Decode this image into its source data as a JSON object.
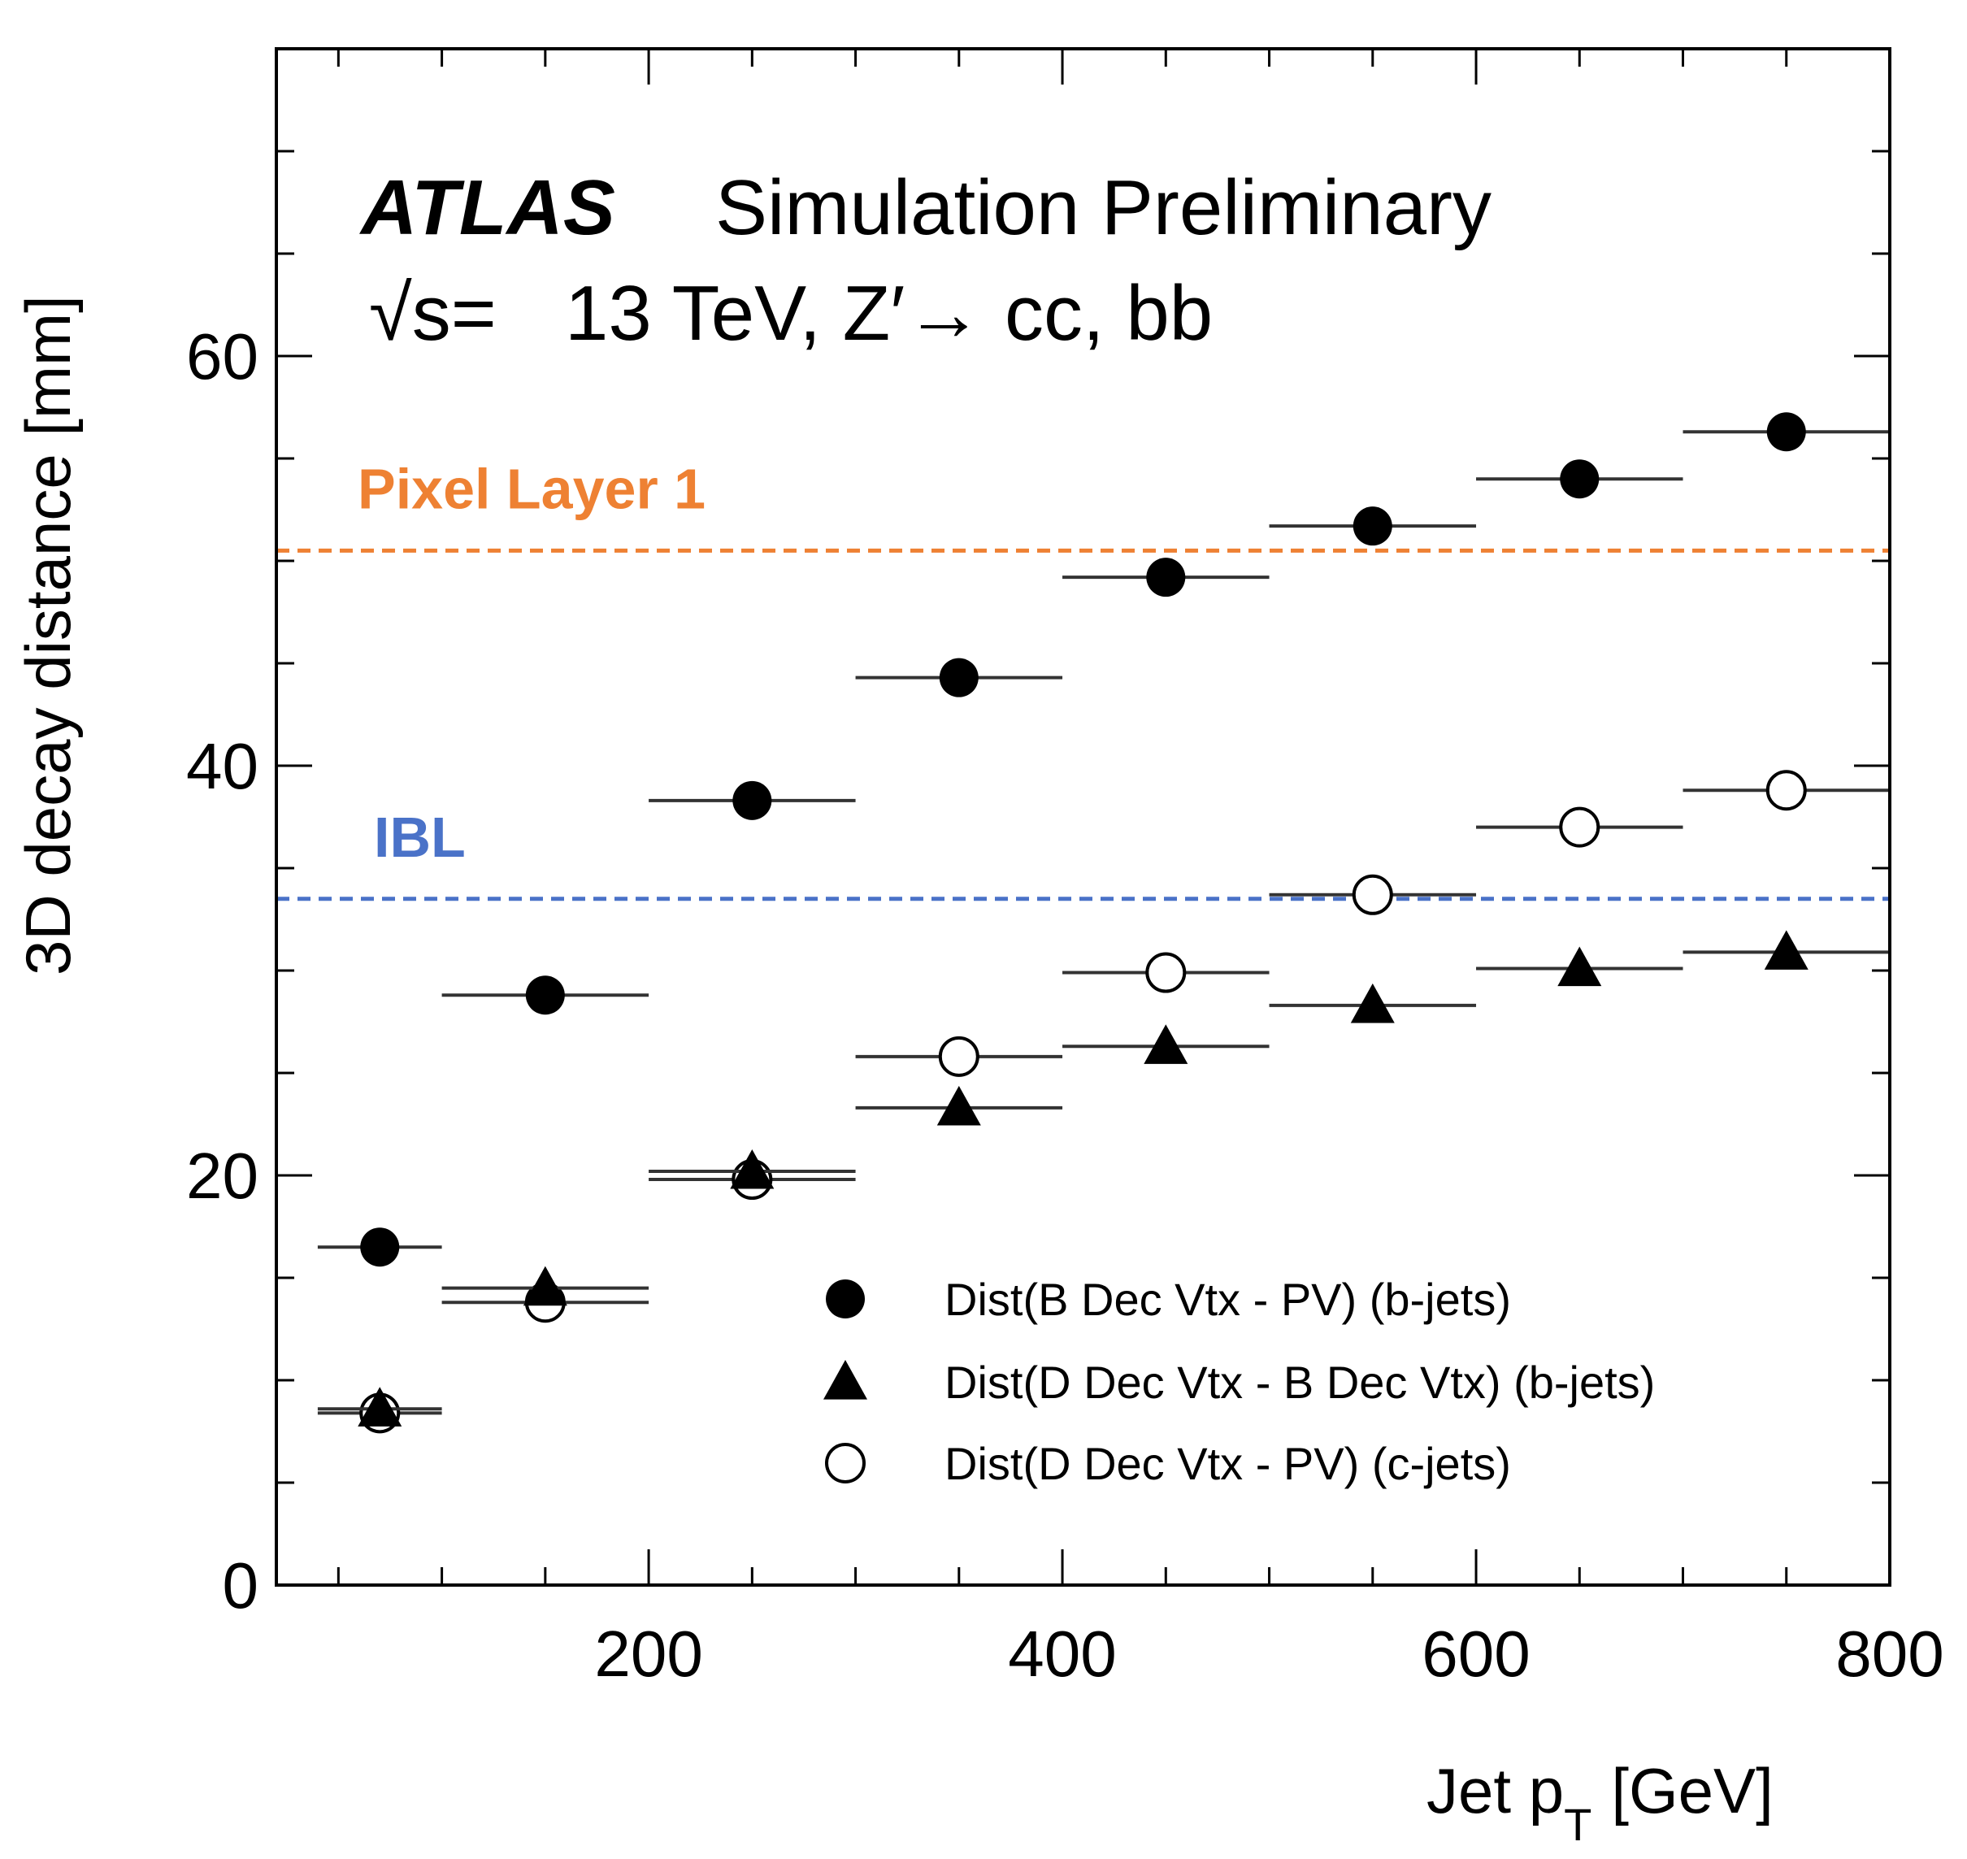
{
  "chart_data": {
    "type": "scatter",
    "experiment": "ATLAS",
    "experiment_suffix": "Simulation  Preliminary",
    "energy_sqrt": "√s=",
    "energy_text": "13 TeV, Z′→ cc, bb",
    "xlabel": "Jet p",
    "xlabel_sub": "T",
    "xlabel_unit": "[GeV]",
    "ylabel": "3D decay distance [mm]",
    "xlim": [
      20,
      800
    ],
    "ylim": [
      0,
      75
    ],
    "x_ticks": [
      200,
      400,
      600,
      800
    ],
    "y_ticks": [
      0,
      20,
      40,
      60
    ],
    "x_minor_step": 50,
    "y_minor_step": 5,
    "hlines": [
      {
        "label": "Pixel Layer 1",
        "y": 50.5,
        "color": "#ee8133"
      },
      {
        "label": "IBL",
        "y": 33.5,
        "color": "#4a72c8"
      }
    ],
    "series": [
      {
        "name": "Dist(B Dec Vtx - PV) (b-jets)",
        "marker": "filled-circle",
        "points": [
          {
            "x": 70,
            "xlo": 40,
            "xhi": 100,
            "y": 16.5
          },
          {
            "x": 150,
            "xlo": 100,
            "xhi": 200,
            "y": 28.8
          },
          {
            "x": 250,
            "xlo": 200,
            "xhi": 300,
            "y": 38.3
          },
          {
            "x": 350,
            "xlo": 300,
            "xhi": 400,
            "y": 44.3
          },
          {
            "x": 450,
            "xlo": 400,
            "xhi": 500,
            "y": 49.2
          },
          {
            "x": 550,
            "xlo": 500,
            "xhi": 600,
            "y": 51.7
          },
          {
            "x": 650,
            "xlo": 600,
            "xhi": 700,
            "y": 54.0
          },
          {
            "x": 750,
            "xlo": 700,
            "xhi": 800,
            "y": 56.3
          }
        ]
      },
      {
        "name": "Dist(D Dec Vtx - B Dec Vtx) (b-jets)",
        "marker": "filled-triangle",
        "points": [
          {
            "x": 70,
            "xlo": 40,
            "xhi": 100,
            "y": 8.6
          },
          {
            "x": 150,
            "xlo": 100,
            "xhi": 200,
            "y": 14.5
          },
          {
            "x": 250,
            "xlo": 200,
            "xhi": 300,
            "y": 20.2
          },
          {
            "x": 350,
            "xlo": 300,
            "xhi": 400,
            "y": 23.3
          },
          {
            "x": 450,
            "xlo": 400,
            "xhi": 500,
            "y": 26.3
          },
          {
            "x": 550,
            "xlo": 500,
            "xhi": 600,
            "y": 28.3
          },
          {
            "x": 650,
            "xlo": 600,
            "xhi": 700,
            "y": 30.1
          },
          {
            "x": 750,
            "xlo": 700,
            "xhi": 800,
            "y": 30.9
          }
        ]
      },
      {
        "name": "Dist(D Dec Vtx - PV) (c-jets)",
        "marker": "open-circle",
        "points": [
          {
            "x": 70,
            "xlo": 40,
            "xhi": 100,
            "y": 8.4
          },
          {
            "x": 150,
            "xlo": 100,
            "xhi": 200,
            "y": 13.8
          },
          {
            "x": 250,
            "xlo": 200,
            "xhi": 300,
            "y": 19.8
          },
          {
            "x": 350,
            "xlo": 300,
            "xhi": 400,
            "y": 25.8
          },
          {
            "x": 450,
            "xlo": 400,
            "xhi": 500,
            "y": 29.9
          },
          {
            "x": 550,
            "xlo": 500,
            "xhi": 600,
            "y": 33.7
          },
          {
            "x": 650,
            "xlo": 600,
            "xhi": 700,
            "y": 37.0
          },
          {
            "x": 750,
            "xlo": 700,
            "xhi": 800,
            "y": 38.8
          }
        ]
      }
    ]
  }
}
